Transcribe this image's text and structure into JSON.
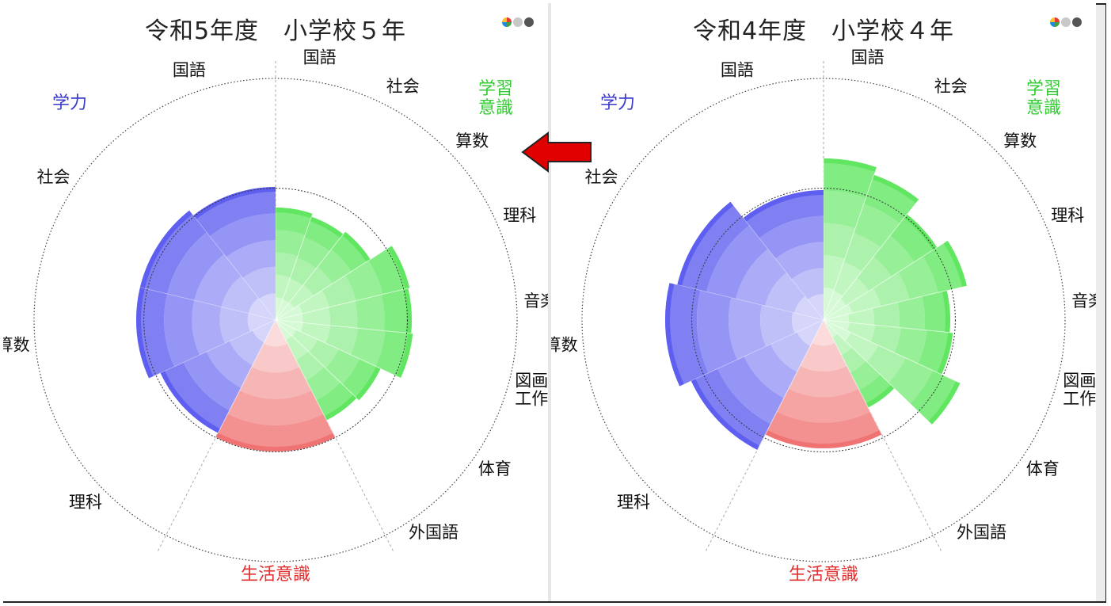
{
  "charts": [
    {
      "title": "令和5年度　小学校５年"
    },
    {
      "title": "令和4年度　小学校４年"
    }
  ],
  "colors": {
    "academic": "#5a5af0",
    "attitude": "#5ce65c",
    "life": "#f07070",
    "academic_label": "#3a3acc",
    "attitude_label": "#33cc33",
    "life_label": "#e03030",
    "arrow": "#e00000"
  },
  "icons": {
    "color_mode": "color-circle-icon",
    "gray_mode": "gray-circle-icon",
    "dark_mode": "dark-circle-icon",
    "arrow": "left-arrow-icon"
  },
  "chart_data": [
    {
      "type": "polar-area",
      "title": "令和5年度　小学校５年",
      "groups": {
        "academic": {
          "label": "学力",
          "categories": [
            "国語",
            "社会",
            "算数",
            "理科"
          ],
          "values": [
            0.84,
            0.88,
            0.88,
            0.8
          ],
          "sector_deg": 153
        },
        "attitude": {
          "label": "学習\n意識",
          "categories": [
            "国語",
            "社会",
            "算数",
            "理科",
            "音楽",
            "図画\n工作",
            "体育",
            "外国語"
          ],
          "values": [
            0.71,
            0.69,
            0.71,
            0.87,
            0.86,
            0.87,
            0.73,
            0.71
          ],
          "sector_deg": 153
        },
        "life": {
          "label": "生活意識",
          "values": [
            0.83
          ],
          "sector_deg": 54
        }
      },
      "reference_level": 0.8,
      "rmax": 1.0
    },
    {
      "type": "polar-area",
      "title": "令和4年度　小学校４年",
      "groups": {
        "academic": {
          "label": "学力",
          "categories": [
            "国語",
            "社会",
            "算数",
            "理科"
          ],
          "values": [
            0.82,
            0.95,
            1.0,
            0.92
          ],
          "sector_deg": 153
        },
        "attitude": {
          "label": "学習\n意識",
          "categories": [
            "国語",
            "社会",
            "算数",
            "理科",
            "音楽",
            "図画\n工作",
            "体育",
            "外国語"
          ],
          "values": [
            1.02,
            0.97,
            0.85,
            0.93,
            0.8,
            0.82,
            0.95,
            0.62
          ],
          "sector_deg": 153
        },
        "life": {
          "label": "生活意識",
          "values": [
            0.81
          ],
          "sector_deg": 54
        }
      },
      "reference_level": 0.8,
      "rmax": 1.0
    }
  ]
}
